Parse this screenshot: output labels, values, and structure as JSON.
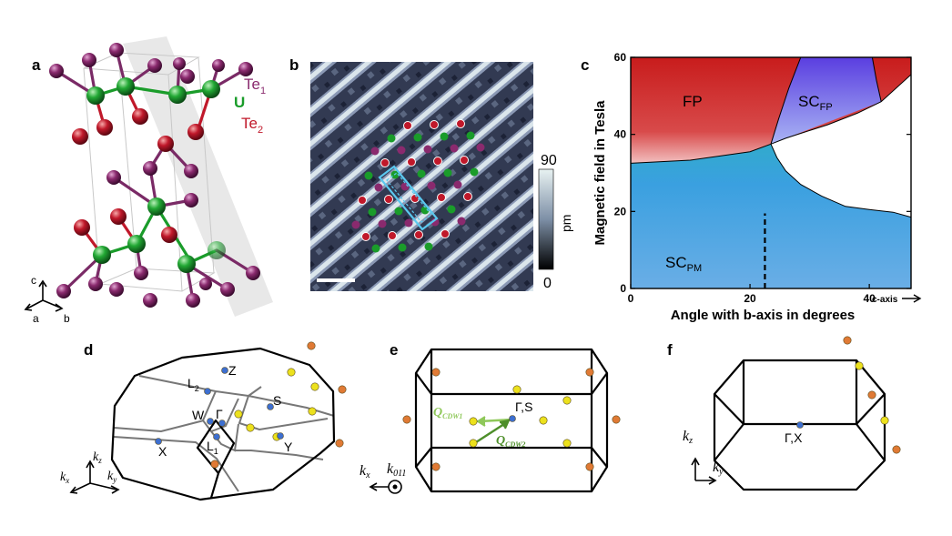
{
  "panel_labels": [
    "a",
    "b",
    "c",
    "d",
    "e",
    "f"
  ],
  "panel_a": {
    "labels": {
      "te1": "Te",
      "te1_sub": "1",
      "u": "U",
      "te2": "Te",
      "te2_sub": "2",
      "axis_c": "c",
      "axis_a": "a",
      "axis_b": "b"
    },
    "colors": {
      "te1": "#8a2a6e",
      "u": "#1a9c2a",
      "te2": "#c0182a"
    }
  },
  "panel_b": {
    "colorbar_max": "90",
    "colorbar_min": "0",
    "colorbar_unit": "pm",
    "overlay_colors": {
      "te1": "#8a2a6e",
      "u": "#1a9c2a",
      "te2": "#c0182a",
      "cell": "#5bc8ef"
    }
  },
  "panel_c": {
    "chart_data": {
      "type": "area",
      "xlabel": "Angle with b-axis in degrees",
      "ylabel": "Magnetic field in Tesla",
      "xlim": [
        0,
        47
      ],
      "ylim": [
        0,
        60
      ],
      "x_ticks": [
        "0",
        "20",
        "40"
      ],
      "y_ticks": [
        "0",
        "20",
        "40",
        "60"
      ],
      "x_end_label": "c-axis",
      "regions": [
        {
          "name": "FP",
          "color": "#d42a2a"
        },
        {
          "name": "SC",
          "sub": "FP",
          "color": "#6a4ee0"
        },
        {
          "name": "SC",
          "sub": "PM",
          "color": "#3aa0e0"
        }
      ],
      "upper_boundary": [
        [
          0,
          32.5
        ],
        [
          10,
          33.3
        ],
        [
          20,
          35.5
        ],
        [
          23.5,
          37.5
        ],
        [
          26,
          39
        ],
        [
          29,
          40.5
        ],
        [
          33,
          42.5
        ],
        [
          38,
          45.5
        ],
        [
          42,
          48.5
        ],
        [
          47,
          55.5
        ]
      ],
      "lower_boundary": [
        [
          23.5,
          37.5
        ],
        [
          24.5,
          34
        ],
        [
          26,
          30.5
        ],
        [
          28.5,
          27
        ],
        [
          32,
          24
        ],
        [
          36,
          21.3
        ],
        [
          40,
          20.5
        ],
        [
          44,
          19.8
        ],
        [
          47,
          18.5
        ]
      ],
      "scfp_dome": [
        [
          23.5,
          37.5
        ],
        [
          24.8,
          44
        ],
        [
          26.5,
          52
        ],
        [
          28.5,
          60
        ],
        [
          40.5,
          60
        ],
        [
          41.2,
          54
        ],
        [
          42,
          48.5
        ]
      ],
      "dashed_line_x": 22.5,
      "dashed_line_ymax": 19.5
    }
  },
  "panel_d": {
    "points": [
      "Z",
      "L",
      "W",
      "Γ",
      "S",
      "X",
      "L",
      "Y"
    ],
    "subs": {
      "l2": "2",
      "l1": "1"
    },
    "axes": {
      "kz": "k",
      "kz_sub": "z",
      "kx": "k",
      "kx_sub": "x",
      "ky": "k",
      "ky_sub": "y"
    }
  },
  "panel_e": {
    "center_label": "Γ,S",
    "q1": "Q",
    "q1_sub": "CDW1",
    "q2": "Q",
    "q2_sub": "CDW2",
    "axes": {
      "kx": "k",
      "kx_sub": "x",
      "k011": "k",
      "k011_sub": "011"
    },
    "colors": {
      "q1": "#8fc85a",
      "q2": "#4e8f2a"
    }
  },
  "panel_f": {
    "center_label": "Γ,X",
    "axes": {
      "kz": "k",
      "kz_sub": "z",
      "ky": "k",
      "ky_sub": "y"
    }
  },
  "marker_colors": {
    "yellow": "#ece11d",
    "orange": "#e07a35",
    "blue": "#3d6fd0"
  }
}
